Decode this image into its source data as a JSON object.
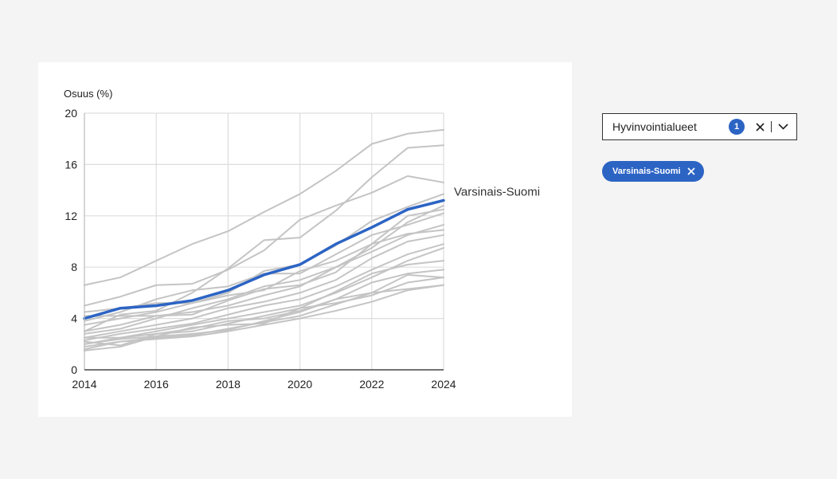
{
  "filter": {
    "label": "Hyvinvointialueet",
    "selected_count": "1",
    "chips": [
      "Varsinais-Suomi"
    ]
  },
  "colors": {
    "highlight": "#2c64c4",
    "background_series": "#c4c4c4",
    "grid": "#dddddd"
  },
  "chart_data": {
    "type": "line",
    "ylabel": "Osuus (%)",
    "xlabel": "",
    "xlim": [
      2014,
      2024
    ],
    "ylim": [
      0,
      20
    ],
    "x_ticks": [
      "2014",
      "2016",
      "2018",
      "2020",
      "2022",
      "2024"
    ],
    "y_ticks": [
      "0",
      "4",
      "8",
      "12",
      "16",
      "20"
    ],
    "grid": true,
    "x": [
      2014,
      2015,
      2016,
      2017,
      2018,
      2019,
      2020,
      2021,
      2022,
      2023,
      2024
    ],
    "highlight": {
      "name": "Varsinais-Suomi",
      "values": [
        4.0,
        4.8,
        5.0,
        5.4,
        6.2,
        7.4,
        8.2,
        9.8,
        11.1,
        12.5,
        13.2
      ]
    },
    "background_series": [
      {
        "values": [
          6.6,
          7.2,
          8.5,
          9.8,
          10.8,
          12.3,
          13.7,
          15.5,
          17.6,
          18.4,
          18.7
        ]
      },
      {
        "values": [
          3.0,
          4.3,
          4.6,
          6.0,
          7.9,
          10.1,
          10.3,
          12.4,
          15.0,
          17.3,
          17.5
        ]
      },
      {
        "values": [
          5.0,
          5.7,
          6.6,
          6.7,
          7.8,
          9.3,
          11.7,
          12.8,
          13.8,
          15.1,
          14.6
        ]
      },
      {
        "values": [
          3.5,
          4.0,
          4.5,
          5.2,
          6.0,
          7.7,
          8.2,
          9.7,
          11.6,
          12.7,
          13.7
        ]
      },
      {
        "values": [
          3.8,
          4.5,
          5.5,
          6.2,
          6.5,
          7.5,
          7.5,
          9.0,
          10.5,
          11.3,
          12.2
        ]
      },
      {
        "values": [
          4.5,
          4.8,
          5.2,
          5.2,
          5.8,
          6.2,
          7.7,
          8.5,
          9.8,
          12.0,
          12.5
        ]
      },
      {
        "values": [
          2.8,
          3.2,
          4.0,
          4.8,
          5.5,
          6.5,
          7.0,
          8.0,
          9.5,
          11.5,
          12.8
        ]
      },
      {
        "values": [
          3.0,
          3.5,
          4.2,
          4.5,
          5.0,
          5.8,
          6.5,
          8.0,
          9.2,
          10.5,
          11.3
        ]
      },
      {
        "values": [
          4.2,
          4.2,
          4.2,
          4.3,
          5.4,
          6.3,
          6.6,
          7.6,
          9.8,
          10.6,
          10.9
        ]
      },
      {
        "values": [
          2.5,
          3.0,
          3.5,
          4.0,
          4.8,
          5.3,
          6.0,
          7.0,
          8.7,
          10.0,
          10.5
        ]
      },
      {
        "values": [
          2.3,
          2.8,
          3.2,
          3.6,
          4.3,
          5.0,
          5.5,
          6.5,
          7.8,
          9.0,
          9.8
        ]
      },
      {
        "values": [
          2.0,
          2.5,
          3.0,
          3.5,
          4.0,
          4.5,
          5.0,
          6.0,
          7.2,
          8.5,
          9.5
        ]
      },
      {
        "values": [
          2.5,
          2.5,
          2.8,
          3.0,
          3.6,
          4.2,
          4.8,
          6.1,
          7.5,
          8.2,
          8.5
        ]
      },
      {
        "values": [
          2.0,
          2.4,
          2.6,
          2.8,
          3.1,
          3.8,
          4.5,
          5.5,
          6.8,
          7.5,
          7.8
        ]
      },
      {
        "values": [
          1.8,
          2.2,
          2.5,
          2.7,
          3.2,
          3.7,
          4.2,
          5.1,
          6.0,
          7.4,
          7.2
        ]
      },
      {
        "values": [
          1.6,
          2.2,
          2.4,
          2.6,
          3.0,
          3.5,
          4.0,
          4.6,
          5.3,
          6.2,
          6.6
        ]
      },
      {
        "values": [
          2.2,
          1.9,
          2.8,
          3.2,
          3.8,
          4.0,
          4.6,
          5.5,
          6.0,
          6.3,
          6.6
        ]
      },
      {
        "values": [
          1.5,
          1.8,
          2.6,
          3.3,
          3.5,
          3.6,
          4.8,
          5.2,
          5.8,
          6.8,
          7.2
        ]
      }
    ]
  }
}
